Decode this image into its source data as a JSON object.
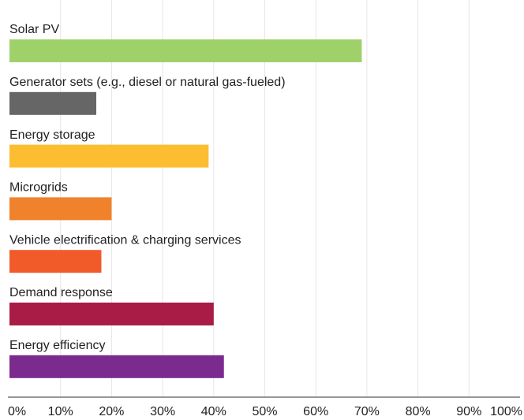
{
  "chart_data": {
    "type": "barh",
    "categories": [
      "Solar PV",
      "Generator sets (e.g., diesel or natural gas-fueled)",
      "Energy storage",
      "Microgrids",
      "Vehicle electrification & charging services",
      "Demand response",
      "Energy efficiency"
    ],
    "values": [
      69,
      17,
      39,
      20,
      18,
      40,
      42
    ],
    "colors": [
      "#9fd16a",
      "#666666",
      "#fcbd31",
      "#f0822b",
      "#f15b2a",
      "#a91c45",
      "#7b2a8d"
    ],
    "xlim": [
      0,
      100
    ],
    "xticks": [
      {
        "value": 0,
        "label": "0%"
      },
      {
        "value": 10,
        "label": "10%"
      },
      {
        "value": 20,
        "label": "20%"
      },
      {
        "value": 30,
        "label": "30%"
      },
      {
        "value": 40,
        "label": "40%"
      },
      {
        "value": 50,
        "label": "50%"
      },
      {
        "value": 60,
        "label": "60%"
      },
      {
        "value": 70,
        "label": "70%"
      },
      {
        "value": 80,
        "label": "80%"
      },
      {
        "value": 90,
        "label": "90%"
      },
      {
        "value": 100,
        "label": "100%"
      }
    ],
    "grid": true
  }
}
